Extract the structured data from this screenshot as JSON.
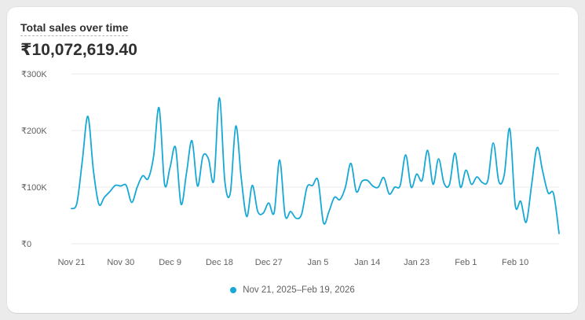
{
  "card": {
    "title": "Total sales over time",
    "total": "₹10,072,619.40"
  },
  "colors": {
    "line": "#17a8d6",
    "grid": "#ebebeb",
    "tick_text": "#616161"
  },
  "chart_data": {
    "type": "line",
    "title": "Total sales over time",
    "xlabel": "",
    "ylabel": "",
    "ylim": [
      0,
      300000
    ],
    "y_ticks": [
      {
        "value": 300000,
        "label": "₹300K"
      },
      {
        "value": 200000,
        "label": "₹200K"
      },
      {
        "value": 100000,
        "label": "₹100K"
      },
      {
        "value": 0,
        "label": "₹0"
      }
    ],
    "x_ticks": [
      {
        "index": 0,
        "label": "Nov 21"
      },
      {
        "index": 9,
        "label": "Nov 30"
      },
      {
        "index": 18,
        "label": "Dec 9"
      },
      {
        "index": 27,
        "label": "Dec 18"
      },
      {
        "index": 36,
        "label": "Dec 27"
      },
      {
        "index": 45,
        "label": "Jan 5"
      },
      {
        "index": 54,
        "label": "Jan 14"
      },
      {
        "index": 63,
        "label": "Jan 23"
      },
      {
        "index": 72,
        "label": "Feb 1"
      },
      {
        "index": 81,
        "label": "Feb 10"
      }
    ],
    "grid": true,
    "legend_position": "bottom",
    "series": [
      {
        "name": "Nov 21, 2025–Feb 19, 2026",
        "dashed_from_index": 89,
        "values": [
          62000,
          72000,
          148000,
          225000,
          130000,
          70000,
          82000,
          92000,
          103000,
          102000,
          103000,
          73000,
          100000,
          120000,
          115000,
          155000,
          240000,
          105000,
          135000,
          170000,
          70000,
          125000,
          182000,
          102000,
          155000,
          150000,
          112000,
          258000,
          110000,
          90000,
          208000,
          115000,
          48000,
          103000,
          57000,
          54000,
          72000,
          55000,
          148000,
          50000,
          57000,
          45000,
          52000,
          100000,
          103000,
          112000,
          37000,
          57000,
          82000,
          78000,
          100000,
          142000,
          92000,
          110000,
          112000,
          102000,
          100000,
          117000,
          88000,
          100000,
          103000,
          157000,
          100000,
          123000,
          112000,
          165000,
          105000,
          150000,
          107000,
          105000,
          160000,
          100000,
          130000,
          105000,
          118000,
          108000,
          112000,
          178000,
          110000,
          122000,
          203000,
          68000,
          75000,
          38000,
          105000,
          170000,
          128000,
          90000,
          88000,
          18000
        ]
      }
    ]
  }
}
